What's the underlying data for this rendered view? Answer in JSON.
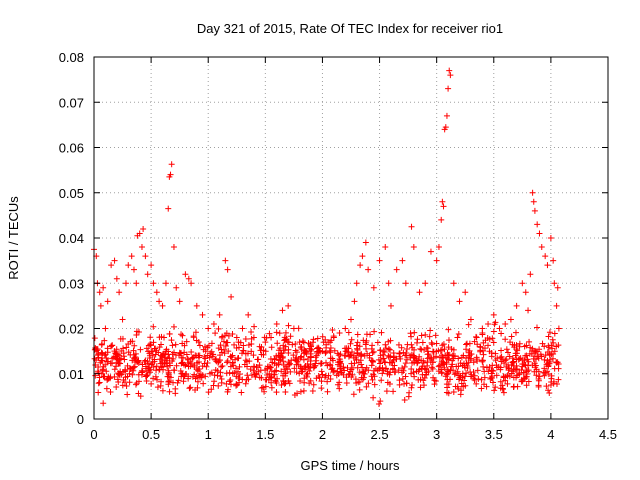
{
  "chart_data": {
    "type": "scatter",
    "title": "Day 321 of 2015, Rate Of TEC Index for receiver rio1",
    "xlabel": "GPS time / hours",
    "ylabel": "ROTI / TECUs",
    "xlim": [
      0,
      4.5
    ],
    "ylim": [
      0,
      0.08
    ],
    "xticks": [
      0,
      0.5,
      1,
      1.5,
      2,
      2.5,
      3,
      3.5,
      4,
      4.5
    ],
    "xtick_labels": [
      "0",
      "0.5",
      "1",
      "1.5",
      "2",
      "2.5",
      "3",
      "3.5",
      "4",
      "4.5"
    ],
    "yticks": [
      0,
      0.01,
      0.02,
      0.03,
      0.04,
      0.05,
      0.06,
      0.07,
      0.08
    ],
    "ytick_labels": [
      "0",
      "0.01",
      "0.02",
      "0.03",
      "0.04",
      "0.05",
      "0.06",
      "0.07",
      "0.08"
    ],
    "grid": true,
    "marker": "plus",
    "marker_color": "#ff0000",
    "series": [
      {
        "name": "ROTI",
        "points": [
          [
            0.0,
            0.0375
          ],
          [
            0.02,
            0.036
          ],
          [
            0.03,
            0.03
          ],
          [
            0.05,
            0.028
          ],
          [
            0.06,
            0.025
          ],
          [
            0.08,
            0.029
          ],
          [
            0.1,
            0.02
          ],
          [
            0.12,
            0.026
          ],
          [
            0.15,
            0.034
          ],
          [
            0.18,
            0.035
          ],
          [
            0.2,
            0.031
          ],
          [
            0.22,
            0.028
          ],
          [
            0.25,
            0.022
          ],
          [
            0.28,
            0.03
          ],
          [
            0.3,
            0.034
          ],
          [
            0.33,
            0.036
          ],
          [
            0.35,
            0.033
          ],
          [
            0.37,
            0.03
          ],
          [
            0.38,
            0.0405
          ],
          [
            0.4,
            0.041
          ],
          [
            0.42,
            0.038
          ],
          [
            0.43,
            0.042
          ],
          [
            0.45,
            0.036
          ],
          [
            0.47,
            0.032
          ],
          [
            0.5,
            0.034
          ],
          [
            0.52,
            0.03
          ],
          [
            0.55,
            0.028
          ],
          [
            0.57,
            0.026
          ],
          [
            0.6,
            0.025
          ],
          [
            0.63,
            0.03
          ],
          [
            0.65,
            0.0465
          ],
          [
            0.66,
            0.0535
          ],
          [
            0.67,
            0.054
          ],
          [
            0.68,
            0.0563
          ],
          [
            0.7,
            0.038
          ],
          [
            0.72,
            0.029
          ],
          [
            0.75,
            0.026
          ],
          [
            0.8,
            0.032
          ],
          [
            0.83,
            0.031
          ],
          [
            0.85,
            0.03
          ],
          [
            0.9,
            0.025
          ],
          [
            0.95,
            0.023
          ],
          [
            1.0,
            0.02
          ],
          [
            1.05,
            0.021
          ],
          [
            1.1,
            0.023
          ],
          [
            1.15,
            0.035
          ],
          [
            1.17,
            0.033
          ],
          [
            1.2,
            0.027
          ],
          [
            1.25,
            0.018
          ],
          [
            1.3,
            0.02
          ],
          [
            1.35,
            0.023
          ],
          [
            1.4,
            0.018
          ],
          [
            1.45,
            0.016
          ],
          [
            1.5,
            0.017
          ],
          [
            1.55,
            0.018
          ],
          [
            1.6,
            0.021
          ],
          [
            1.65,
            0.024
          ],
          [
            1.7,
            0.025
          ],
          [
            1.75,
            0.02
          ],
          [
            1.8,
            0.017
          ],
          [
            1.85,
            0.015
          ],
          [
            1.9,
            0.016
          ],
          [
            1.95,
            0.014
          ],
          [
            2.0,
            0.015
          ],
          [
            2.05,
            0.017
          ],
          [
            2.1,
            0.018
          ],
          [
            2.15,
            0.019
          ],
          [
            2.2,
            0.02
          ],
          [
            2.25,
            0.022
          ],
          [
            2.28,
            0.026
          ],
          [
            2.3,
            0.03
          ],
          [
            2.33,
            0.034
          ],
          [
            2.35,
            0.036
          ],
          [
            2.38,
            0.039
          ],
          [
            2.4,
            0.033
          ],
          [
            2.45,
            0.029
          ],
          [
            2.5,
            0.035
          ],
          [
            2.55,
            0.038
          ],
          [
            2.58,
            0.03
          ],
          [
            2.6,
            0.025
          ],
          [
            2.65,
            0.033
          ],
          [
            2.7,
            0.035
          ],
          [
            2.73,
            0.03
          ],
          [
            2.78,
            0.0425
          ],
          [
            2.8,
            0.038
          ],
          [
            2.85,
            0.028
          ],
          [
            2.9,
            0.03
          ],
          [
            2.95,
            0.037
          ],
          [
            3.0,
            0.035
          ],
          [
            3.02,
            0.038
          ],
          [
            3.04,
            0.044
          ],
          [
            3.05,
            0.048
          ],
          [
            3.06,
            0.047
          ],
          [
            3.07,
            0.064
          ],
          [
            3.08,
            0.0645
          ],
          [
            3.09,
            0.067
          ],
          [
            3.1,
            0.073
          ],
          [
            3.11,
            0.077
          ],
          [
            3.12,
            0.076
          ],
          [
            3.15,
            0.03
          ],
          [
            3.2,
            0.026
          ],
          [
            3.25,
            0.028
          ],
          [
            3.3,
            0.022
          ],
          [
            3.35,
            0.018
          ],
          [
            3.4,
            0.02
          ],
          [
            3.45,
            0.021
          ],
          [
            3.5,
            0.023
          ],
          [
            3.55,
            0.02
          ],
          [
            3.6,
            0.021
          ],
          [
            3.65,
            0.022
          ],
          [
            3.7,
            0.025
          ],
          [
            3.75,
            0.03
          ],
          [
            3.78,
            0.028
          ],
          [
            3.8,
            0.024
          ],
          [
            3.82,
            0.032
          ],
          [
            3.84,
            0.05
          ],
          [
            3.85,
            0.048
          ],
          [
            3.86,
            0.046
          ],
          [
            3.88,
            0.043
          ],
          [
            3.9,
            0.041
          ],
          [
            3.92,
            0.038
          ],
          [
            3.95,
            0.036
          ],
          [
            3.97,
            0.034
          ],
          [
            4.0,
            0.04
          ],
          [
            4.02,
            0.035
          ],
          [
            4.03,
            0.03
          ],
          [
            4.05,
            0.025
          ],
          [
            4.06,
            0.029
          ],
          [
            4.07,
            0.02
          ]
        ],
        "band": {
          "description": "dense cluster of points between 0.003 and 0.022 across 0 to 4.07 hours",
          "x_range": [
            0,
            4.07
          ],
          "y_range": [
            0.003,
            0.022
          ],
          "y_center": 0.012
        }
      }
    ]
  }
}
